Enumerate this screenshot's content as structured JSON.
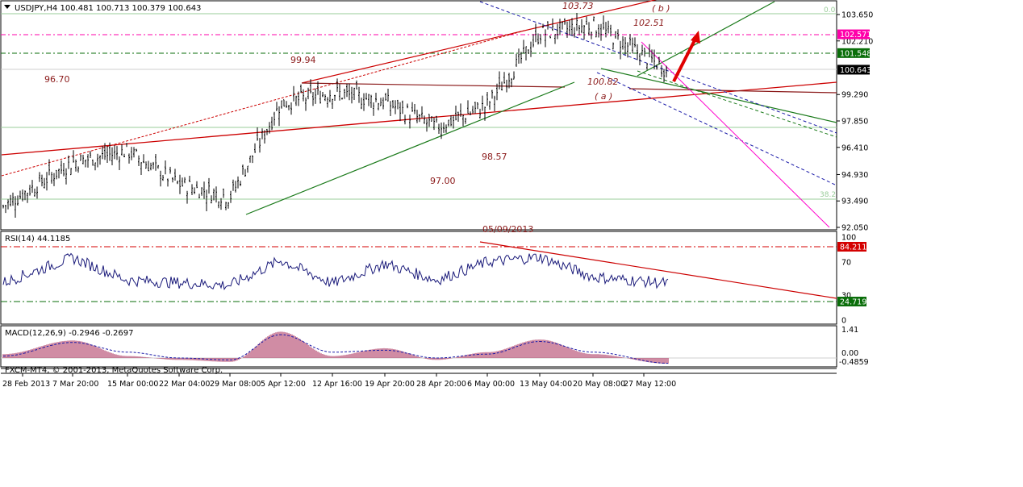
{
  "header": {
    "symbol_line": "USDJPY,H4  100.481 100.713 100.379 100.643",
    "rsi_label": "RSI(14) 44.1185",
    "macd_label": "MACD(12,26,9) -0.2946 -0.2697",
    "broker_label": "FXCM-MT4, © 2001-2013, MetaQuotes Software Corp."
  },
  "price_axis": {
    "ticks": [
      "103.650",
      "102.210",
      "99.290",
      "97.850",
      "96.410",
      "94.930",
      "93.490",
      "92.050"
    ],
    "badges": [
      {
        "label": "102.571",
        "color": "#ff00aa",
        "text_color": "#ffffff"
      },
      {
        "label": "101.548",
        "color": "#0a6e0a",
        "text_color": "#ffffff"
      },
      {
        "label": "100.643",
        "color": "#000000",
        "text_color": "#ffffff"
      }
    ]
  },
  "rsi_axis": {
    "ticks": [
      "100",
      "70",
      "30",
      "0"
    ],
    "badges": [
      {
        "label": "84.211",
        "color": "#d40000",
        "text_color": "#ffffff"
      },
      {
        "label": "24.719",
        "color": "#0a6e0a",
        "text_color": "#ffffff"
      }
    ]
  },
  "macd_axis": {
    "ticks": [
      "1.41",
      "0.00",
      "-0.4859"
    ]
  },
  "date_axis": {
    "labels": [
      "28 Feb 2013",
      "7 Mar 20:00",
      "15 Mar 00:00",
      "22 Mar 04:00",
      "29 Mar 08:00",
      "5 Apr 12:00",
      "12 Apr 16:00",
      "19 Apr 20:00",
      "28 Apr 20:00",
      "6 May 00:00",
      "13 May 04:00",
      "20 May 08:00",
      "27 May 12:00"
    ]
  },
  "annotations": {
    "a_96_70": "96.70",
    "a_99_94": "99.94",
    "a_103_73": "103.73",
    "a_b": "( b )",
    "a_102_51": "102.51",
    "a_100_82": "100.82",
    "a_a": "( a )",
    "a_98_57": "98.57",
    "a_97_00": "97.00",
    "a_cut": "05/09/2013",
    "fib_0": "0.0",
    "fib_38": "38.2"
  },
  "colors": {
    "candle": "#000000",
    "channel_red": "#cc0000",
    "trend_green": "#1a7a1a",
    "dash_blue": "#1a1aa8",
    "magenta": "#ff00cc",
    "arrow_red": "#e00000",
    "rsi_line": "#1a1a7a",
    "macd_hist": "#a01a4a",
    "macd_signal": "#1a1aa8"
  },
  "chart_data": [
    {
      "type": "candlestick",
      "title": "USDJPY,H4",
      "open": 100.481,
      "high": 100.713,
      "low": 100.379,
      "close": 100.643,
      "ylim": [
        92.05,
        103.65
      ],
      "x": [
        "28 Feb 2013",
        "7 Mar 20:00",
        "15 Mar 00:00",
        "22 Mar 04:00",
        "29 Mar 08:00",
        "5 Apr 12:00",
        "12 Apr 16:00",
        "19 Apr 20:00",
        "28 Apr 20:00",
        "6 May 00:00",
        "13 May 04:00",
        "20 May 08:00",
        "27 May 12:00"
      ],
      "close_approx": [
        93.2,
        95.6,
        96.2,
        94.4,
        93.7,
        98.8,
        99.4,
        98.9,
        97.5,
        98.7,
        102.6,
        103.1,
        100.6
      ],
      "levels": [
        102.571,
        101.548,
        100.643
      ],
      "labeled_pivots": {
        "96.70": 96.7,
        "99.94": 99.94,
        "103.73": 103.73,
        "102.51": 102.51,
        "100.82": 100.82,
        "98.57": 98.57,
        "97.00": 97.0
      }
    },
    {
      "type": "line",
      "title": "RSI(14) 44.1185",
      "ylim": [
        0,
        100
      ],
      "levels": [
        84.211,
        24.719
      ],
      "x": [
        "28 Feb 2013",
        "7 Mar 20:00",
        "15 Mar 00:00",
        "22 Mar 04:00",
        "29 Mar 08:00",
        "5 Apr 12:00",
        "12 Apr 16:00",
        "19 Apr 20:00",
        "28 Apr 20:00",
        "6 May 00:00",
        "13 May 04:00",
        "20 May 08:00",
        "27 May 12:00"
      ],
      "values": [
        45,
        75,
        48,
        45,
        42,
        72,
        44,
        68,
        48,
        70,
        76,
        52,
        44.1185
      ]
    },
    {
      "type": "bar",
      "title": "MACD(12,26,9) -0.2946 -0.2697",
      "ylim": [
        -0.4859,
        1.41
      ],
      "x": [
        "28 Feb 2013",
        "7 Mar 20:00",
        "15 Mar 00:00",
        "22 Mar 04:00",
        "29 Mar 08:00",
        "5 Apr 12:00",
        "12 Apr 16:00",
        "19 Apr 20:00",
        "28 Apr 20:00",
        "6 May 00:00",
        "13 May 04:00",
        "20 May 08:00",
        "27 May 12:00"
      ],
      "series": [
        {
          "name": "MACD",
          "values": [
            0.2,
            0.9,
            0.1,
            -0.1,
            -0.2,
            1.35,
            0.1,
            0.5,
            -0.1,
            0.3,
            0.95,
            0.2,
            -0.2946
          ]
        },
        {
          "name": "Signal",
          "values": [
            0.1,
            0.8,
            0.3,
            0.0,
            -0.1,
            1.2,
            0.3,
            0.4,
            0.0,
            0.2,
            0.85,
            0.3,
            -0.2697
          ]
        }
      ]
    }
  ]
}
